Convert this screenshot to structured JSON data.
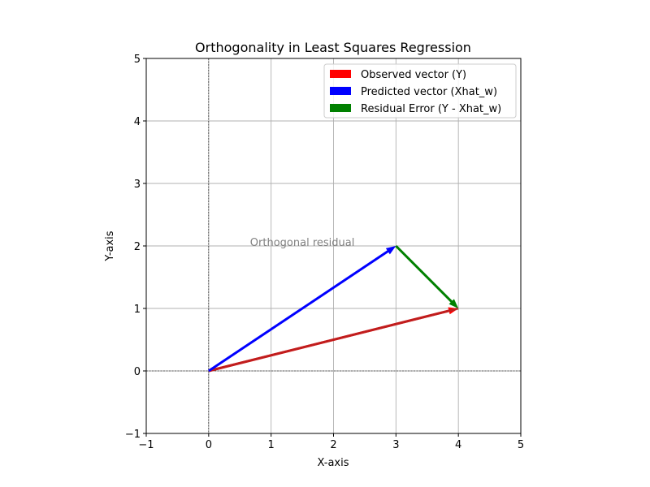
{
  "chart_data": {
    "type": "quiver",
    "title": "Orthogonality in Least Squares Regression",
    "xlabel": "X-axis",
    "ylabel": "Y-axis",
    "xlim": [
      -1,
      5
    ],
    "ylim": [
      -1,
      5
    ],
    "xticks": [
      -1,
      0,
      1,
      2,
      3,
      4,
      5
    ],
    "yticks": [
      -1,
      0,
      1,
      2,
      3,
      4,
      5
    ],
    "xtick_labels": [
      "−1",
      "0",
      "1",
      "2",
      "3",
      "4",
      "5"
    ],
    "ytick_labels": [
      "−1",
      "0",
      "1",
      "2",
      "3",
      "4",
      "5"
    ],
    "grid": true,
    "legend_position": "top-right",
    "reference_lines": [
      {
        "orientation": "horizontal",
        "value": 0,
        "color": "#000000",
        "style": "dashed"
      },
      {
        "orientation": "vertical",
        "value": 0,
        "color": "#000000",
        "style": "dashed"
      }
    ],
    "vectors": [
      {
        "name": "Observed vector (Y)",
        "from": [
          0,
          0
        ],
        "to": [
          4,
          1
        ],
        "color": "#ff0000"
      },
      {
        "name": "Predicted vector (Xhat_w)",
        "from": [
          0,
          0
        ],
        "to": [
          3,
          2
        ],
        "color": "#0000ff"
      },
      {
        "name": "Residual Error (Y - Xhat_w)",
        "from": [
          3,
          2
        ],
        "to": [
          4,
          1
        ],
        "color": "#008000"
      }
    ],
    "projection_line": {
      "from": [
        0,
        0
      ],
      "to": [
        4,
        1
      ],
      "color": "#a52a2a"
    },
    "annotations": [
      {
        "text": "Orthogonal residual",
        "x": 1.5,
        "y": 2,
        "color": "#808080"
      }
    ]
  }
}
